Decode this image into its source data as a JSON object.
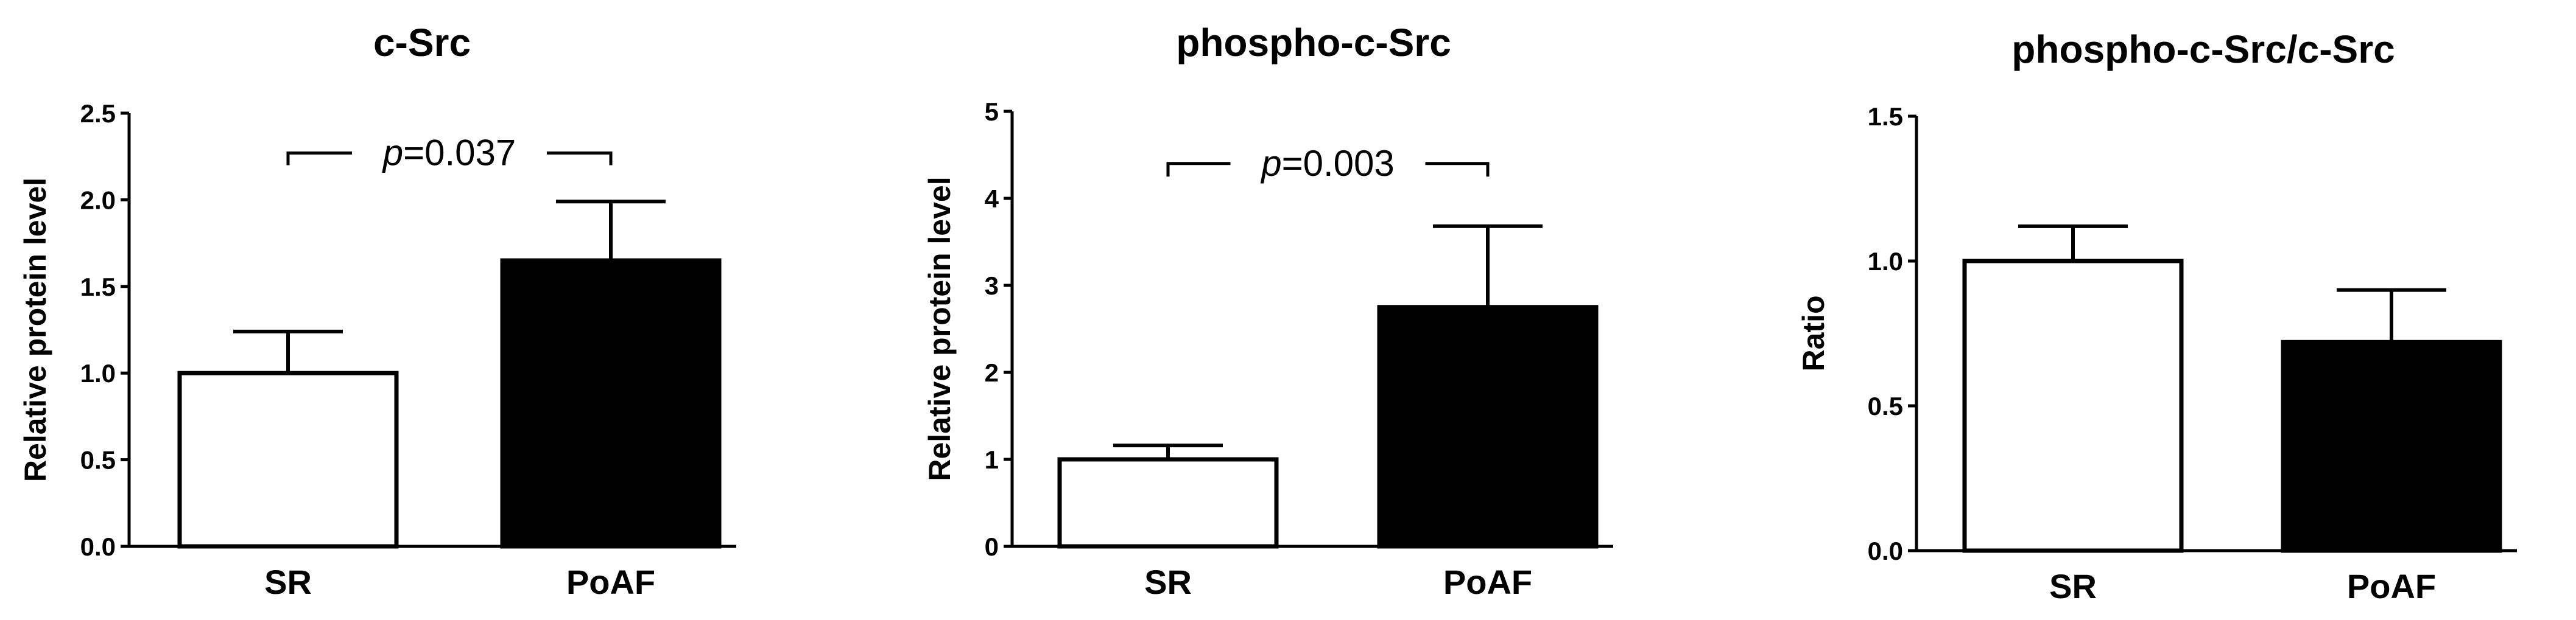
{
  "chart_data": [
    {
      "type": "bar",
      "title": "c-Src",
      "ylabel": "Relative protein level",
      "xlabel": "",
      "categories": [
        "SR",
        "PoAF"
      ],
      "values": [
        1.0,
        1.65
      ],
      "error_upper": [
        1.24,
        1.99
      ],
      "bar_fill": [
        "#ffffff",
        "#000000"
      ],
      "ylim": [
        0,
        2.5
      ],
      "yticks": [
        0,
        0.5,
        1.0,
        1.5,
        2.0,
        2.5
      ],
      "ytick_labels": [
        "0.0",
        "0.5",
        "1.0",
        "1.5",
        "2.0",
        "2.5"
      ],
      "annotation": {
        "prefix": "p",
        "text": "=0.037",
        "between": [
          "SR",
          "PoAF"
        ],
        "at_y": 2.27,
        "drops_to": 2.2
      }
    },
    {
      "type": "bar",
      "title": "phospho-c-Src",
      "ylabel": "Relative protein level",
      "xlabel": "",
      "categories": [
        "SR",
        "PoAF"
      ],
      "values": [
        1.0,
        2.75
      ],
      "error_upper": [
        1.16,
        3.68
      ],
      "bar_fill": [
        "#ffffff",
        "#000000"
      ],
      "ylim": [
        0,
        5
      ],
      "yticks": [
        0,
        1,
        2,
        3,
        4,
        5
      ],
      "ytick_labels": [
        "0",
        "1",
        "2",
        "3",
        "4",
        "5"
      ],
      "annotation": {
        "prefix": "p",
        "text": "=0.003",
        "between": [
          "SR",
          "PoAF"
        ],
        "at_y": 4.4,
        "drops_to": 4.25
      }
    },
    {
      "type": "bar",
      "title": "phospho-c-Src/c-Src",
      "ylabel": "Ratio",
      "xlabel": "",
      "categories": [
        "SR",
        "PoAF"
      ],
      "values": [
        1.0,
        0.72
      ],
      "error_upper": [
        1.12,
        0.9
      ],
      "bar_fill": [
        "#ffffff",
        "#000000"
      ],
      "ylim": [
        0,
        1.5
      ],
      "yticks": [
        0,
        0.5,
        1.0,
        1.5
      ],
      "ytick_labels": [
        "0.0",
        "0.5",
        "1.0",
        "1.5"
      ],
      "annotation": null
    }
  ]
}
